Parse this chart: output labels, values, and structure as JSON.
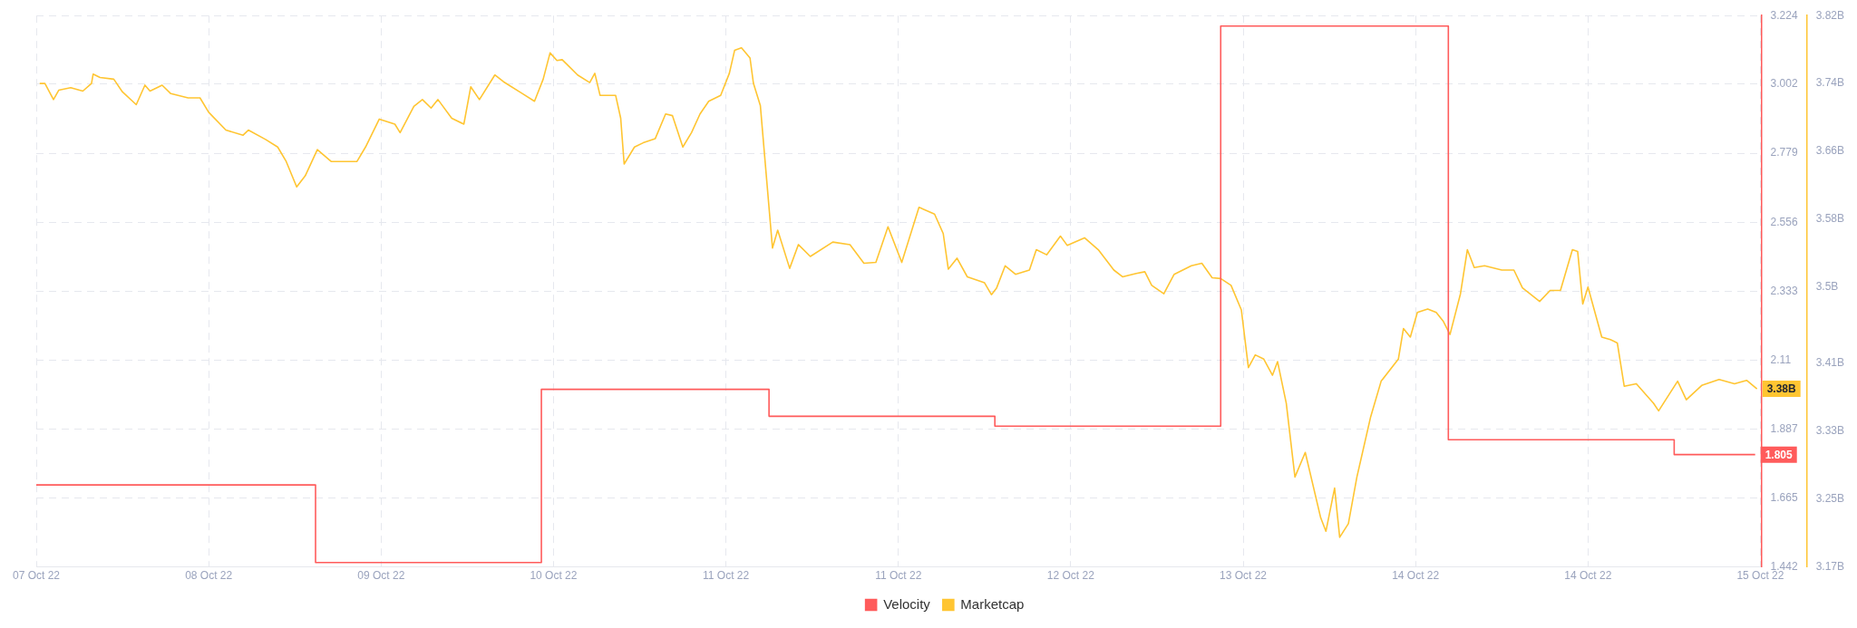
{
  "chart_data": {
    "type": "line",
    "xlim": [
      "--10-07T00:00",
      "--10-15T00:07"
    ],
    "xticks": [
      {
        "value": "--10-07T00:00",
        "label": "07 Oct 22"
      },
      {
        "value": "--10-07T19:12",
        "label": "08 Oct 22"
      },
      {
        "value": "--10-08T14:24",
        "label": "09 Oct 22"
      },
      {
        "value": "--10-09T09:36",
        "label": "10 Oct 22"
      },
      {
        "value": "--10-10T04:48",
        "label": "11 Oct 22"
      },
      {
        "value": "--10-11T00:00",
        "label": "11 Oct 22"
      },
      {
        "value": "--10-11T19:12",
        "label": "12 Oct 22"
      },
      {
        "value": "--10-12T14:24",
        "label": "13 Oct 22"
      },
      {
        "value": "--10-13T09:36",
        "label": "14 Oct 22"
      },
      {
        "value": "--10-14T04:48",
        "label": "14 Oct 22"
      },
      {
        "value": "--10-15T00:00",
        "label": "15 Oct 22"
      }
    ],
    "ylim": [
      1.442,
      3.224
    ],
    "yticks": [
      1.442,
      1.665,
      1.887,
      2.11,
      2.333,
      2.556,
      2.779,
      3.002,
      3.224
    ],
    "y2lim": [
      3.17,
      3.82
    ],
    "y2ticks": [
      {
        "value": 3.17,
        "label": "3.17B"
      },
      {
        "value": 3.25,
        "label": "3.25B"
      },
      {
        "value": 3.33,
        "label": "3.33B"
      },
      {
        "value": 3.41,
        "label": "3.41B"
      },
      {
        "value": 3.5,
        "label": "3.5B"
      },
      {
        "value": 3.58,
        "label": "3.58B"
      },
      {
        "value": 3.66,
        "label": "3.66B"
      },
      {
        "value": 3.74,
        "label": "3.74B"
      },
      {
        "value": 3.82,
        "label": "3.82B"
      }
    ],
    "grid": true,
    "legend": "bottom",
    "marker": "none",
    "line_style": "solid",
    "series": [
      {
        "name": "Velocity",
        "type": "step",
        "axis": "y",
        "color": "#ff5b5b",
        "x": [
          "--10-07T00:00",
          "--10-08T07:06",
          "--10-09T08:15",
          "--10-10T09:36",
          "--10-11T10:45",
          "--10-12T11:54",
          "--10-13T13:15",
          "--10-14T14:24",
          "--10-14T23:25"
        ],
        "values": [
          1.707,
          1.456,
          2.016,
          1.929,
          1.897,
          3.19,
          1.853,
          1.805,
          1.805
        ],
        "value_labels": [
          null,
          null,
          null,
          null,
          null,
          null,
          null,
          null,
          "1.805"
        ]
      },
      {
        "name": "Marketcap",
        "type": "line",
        "axis": "y2",
        "color": "#ffc532",
        "x": [
          "--10-07T00:23",
          "--10-07T00:58",
          "--10-07T01:55",
          "--10-07T02:30",
          "--10-07T03:50",
          "--10-07T05:11",
          "--10-07T06:09",
          "--10-07T06:20",
          "--10-07T07:06",
          "--10-07T08:38",
          "--10-07T09:36",
          "--10-07T11:08",
          "--10-07T12:06",
          "--10-07T12:40",
          "--10-07T14:01",
          "--10-07T14:59",
          "--10-07T16:54",
          "--10-07T18:14",
          "--10-07T19:12",
          "--10-07T21:07",
          "--10-07T23:02",
          "--10-07T23:37",
          "--10-08T01:32",
          "--10-08T02:53",
          "--10-08T03:50",
          "--10-08T05:00",
          "--10-08T05:57",
          "--10-08T07:18",
          "--10-08T08:50",
          "--10-08T11:43",
          "--10-08T12:40",
          "--10-08T14:12",
          "--10-08T15:56",
          "--10-08T16:31",
          "--10-08T18:03",
          "--10-08T19:00",
          "--10-08T19:58",
          "--10-08T20:44",
          "--10-08T22:16",
          "--10-08T23:37",
          "--10-09T00:23",
          "--10-09T01:21",
          "--10-09T03:04",
          "--10-09T04:02",
          "--10-09T06:09",
          "--10-09T07:29",
          "--10-09T08:27",
          "--10-09T09:13",
          "--10-09T09:59",
          "--10-09T10:34",
          "--10-09T11:20",
          "--10-09T12:17",
          "--10-09T13:38",
          "--10-09T14:12",
          "--10-09T14:47",
          "--10-09T16:31",
          "--10-09T17:05",
          "--10-09T17:28",
          "--10-09T18:37",
          "--10-09T19:35",
          "--10-09T20:56",
          "--10-09T22:05",
          "--10-09T22:51",
          "--10-10T00:00",
          "--10-10T00:58",
          "--10-10T01:55",
          "--10-10T02:53",
          "--10-10T04:13",
          "--10-10T05:11",
          "--10-10T05:46",
          "--10-10T06:32",
          "--10-10T07:29",
          "--10-10T07:52",
          "--10-10T08:38",
          "--10-10T09:59",
          "--10-10T10:34",
          "--10-10T11:54",
          "--10-10T12:52",
          "--10-10T14:12",
          "--10-10T16:42",
          "--10-10T18:37",
          "--10-10T20:10",
          "--10-10T21:30",
          "--10-10T22:51",
          "--10-11T00:23",
          "--10-11T02:18",
          "--10-11T04:02",
          "--10-11T05:00",
          "--10-11T05:34",
          "--10-11T06:32",
          "--10-11T07:41",
          "--10-11T09:36",
          "--10-11T10:22",
          "--10-11T10:57",
          "--10-11T11:54",
          "--10-11T13:03",
          "--10-11T14:36",
          "--10-11T15:22",
          "--10-11T16:31",
          "--10-11T18:03",
          "--10-11T18:49",
          "--10-11T20:44",
          "--10-11T22:16",
          "--10-12T00:00",
          "--10-12T00:58",
          "--10-12T02:30",
          "--10-12T03:27",
          "--10-12T04:13",
          "--10-12T05:34",
          "--10-12T06:43",
          "--10-12T08:38",
          "--10-12T09:48",
          "--10-12T10:57",
          "--10-12T11:54",
          "--10-12T13:03",
          "--10-12T14:12",
          "--10-12T14:59",
          "--10-12T15:45",
          "--10-12T16:42",
          "--10-12T17:40",
          "--10-12T18:14",
          "--10-12T19:12",
          "--10-12T20:10",
          "--10-12T21:19",
          "--10-12T23:02",
          "--10-12T23:37",
          "--10-13T00:35",
          "--10-13T01:09",
          "--10-13T02:07",
          "--10-13T03:04",
          "--10-13T04:36",
          "--10-13T05:46",
          "--10-13T07:41",
          "--10-13T08:15",
          "--10-13T09:01",
          "--10-13T09:48",
          "--10-13T10:57",
          "--10-13T11:54",
          "--10-13T12:40",
          "--10-13T13:26",
          "--10-13T14:36",
          "--10-13T15:22",
          "--10-13T16:08",
          "--10-13T17:17",
          "--10-13T19:12",
          "--10-13T20:33",
          "--10-13T21:30",
          "--10-13T23:25",
          "--10-14T00:35",
          "--10-14T01:44",
          "--10-14T03:04",
          "--10-14T03:39",
          "--10-14T04:13",
          "--10-14T04:48",
          "--10-14T06:20",
          "--10-14T07:18",
          "--10-14T08:04",
          "--10-14T08:50",
          "--10-14T10:11",
          "--10-14T12:06",
          "--10-14T12:40",
          "--10-14T14:47",
          "--10-14T15:45",
          "--10-14T17:28",
          "--10-14T19:24",
          "--10-14T21:07",
          "--10-14T22:28",
          "--10-14T23:37"
        ],
        "values": [
          3.74,
          3.74,
          3.721,
          3.732,
          3.735,
          3.731,
          3.74,
          3.751,
          3.747,
          3.745,
          3.73,
          3.715,
          3.738,
          3.731,
          3.738,
          3.728,
          3.723,
          3.723,
          3.706,
          3.685,
          3.679,
          3.685,
          3.674,
          3.665,
          3.648,
          3.618,
          3.631,
          3.662,
          3.648,
          3.648,
          3.665,
          3.698,
          3.692,
          3.682,
          3.713,
          3.721,
          3.711,
          3.721,
          3.699,
          3.692,
          3.736,
          3.721,
          3.75,
          3.742,
          3.728,
          3.719,
          3.745,
          3.776,
          3.767,
          3.768,
          3.76,
          3.75,
          3.741,
          3.752,
          3.726,
          3.726,
          3.699,
          3.645,
          3.665,
          3.67,
          3.675,
          3.704,
          3.702,
          3.665,
          3.682,
          3.704,
          3.719,
          3.726,
          3.752,
          3.779,
          3.782,
          3.77,
          3.74,
          3.714,
          3.546,
          3.567,
          3.522,
          3.55,
          3.536,
          3.553,
          3.55,
          3.528,
          3.529,
          3.571,
          3.529,
          3.594,
          3.586,
          3.563,
          3.521,
          3.534,
          3.512,
          3.505,
          3.491,
          3.499,
          3.525,
          3.515,
          3.52,
          3.544,
          3.538,
          3.56,
          3.549,
          3.558,
          3.544,
          3.52,
          3.512,
          3.516,
          3.518,
          3.502,
          3.492,
          3.515,
          3.525,
          3.528,
          3.511,
          3.51,
          3.502,
          3.473,
          3.405,
          3.42,
          3.415,
          3.396,
          3.412,
          3.363,
          3.276,
          3.305,
          3.228,
          3.212,
          3.263,
          3.205,
          3.221,
          3.276,
          3.347,
          3.389,
          3.415,
          3.451,
          3.441,
          3.47,
          3.474,
          3.47,
          3.46,
          3.444,
          3.492,
          3.544,
          3.523,
          3.525,
          3.52,
          3.52,
          3.499,
          3.483,
          3.496,
          3.496,
          3.544,
          3.542,
          3.48,
          3.5,
          3.441,
          3.438,
          3.434,
          3.383,
          3.386,
          3.363,
          3.354,
          3.389,
          3.367,
          3.384,
          3.391,
          3.386,
          3.39,
          3.38
        ],
        "value_labels": [
          null,
          null,
          null,
          null,
          null,
          null,
          null,
          null,
          null,
          null,
          null,
          null,
          null,
          null,
          null,
          null,
          null,
          null,
          null,
          null,
          null,
          null,
          null,
          null,
          null,
          null,
          null,
          null,
          null,
          null,
          null,
          null,
          null,
          null,
          null,
          null,
          null,
          null,
          null,
          null,
          null,
          null,
          null,
          null,
          null,
          null,
          null,
          null,
          null,
          null,
          null,
          null,
          null,
          null,
          null,
          null,
          null,
          null,
          null,
          null,
          null,
          null,
          null,
          null,
          null,
          null,
          null,
          null,
          null,
          null,
          null,
          null,
          null,
          null,
          null,
          null,
          null,
          null,
          null,
          null,
          null,
          null,
          null,
          null,
          null,
          null,
          null,
          null,
          null,
          null,
          null,
          null,
          null,
          null,
          null,
          null,
          null,
          null,
          null,
          null,
          null,
          null,
          null,
          null,
          null,
          null,
          null,
          null,
          null,
          null,
          null,
          null,
          null,
          null,
          null,
          null,
          null,
          null,
          null,
          null,
          null,
          null,
          null,
          null,
          null,
          null,
          null,
          null,
          null,
          null,
          null,
          null,
          null,
          null,
          null,
          null,
          null,
          null,
          null,
          null,
          null,
          null,
          null,
          null,
          null,
          null,
          null,
          null,
          null,
          null,
          null,
          null,
          null,
          null,
          null,
          null,
          null,
          null,
          null,
          null,
          null,
          null,
          null,
          null,
          null,
          null,
          null,
          "3.38B"
        ]
      }
    ]
  }
}
